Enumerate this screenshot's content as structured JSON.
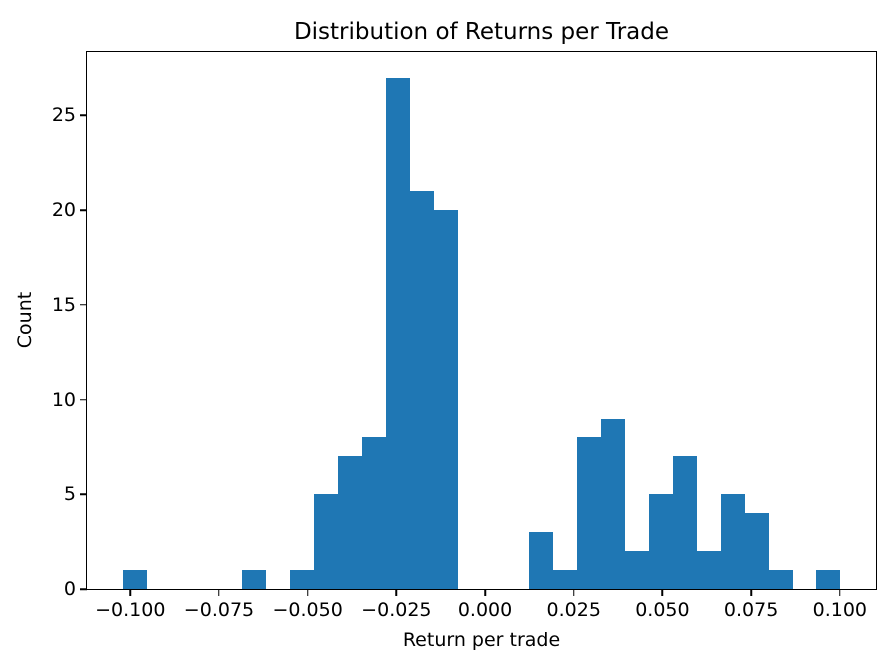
{
  "chart_data": {
    "type": "bar",
    "subtype": "histogram",
    "title": "Distribution of Returns per Trade",
    "xlabel": "Return per trade",
    "ylabel": "Count",
    "bar_color": "#1f77b4",
    "spine_color": "#000000",
    "background_color": "#ffffff",
    "grid": false,
    "xlim": [
      -0.1122,
      0.1102
    ],
    "ylim": [
      0,
      28.35
    ],
    "bins": {
      "start": -0.1021,
      "width": 0.006742,
      "counts": [
        1,
        0,
        0,
        0,
        0,
        1,
        0,
        1,
        5,
        7,
        8,
        27,
        21,
        20,
        0,
        0,
        0,
        3,
        1,
        8,
        9,
        2,
        5,
        7,
        2,
        5,
        4,
        1,
        0,
        1
      ]
    },
    "x_ticks": [
      {
        "value": -0.1,
        "label": "−0.100"
      },
      {
        "value": -0.075,
        "label": "−0.075"
      },
      {
        "value": -0.05,
        "label": "−0.050"
      },
      {
        "value": -0.025,
        "label": "−0.025"
      },
      {
        "value": 0.0,
        "label": "0.000"
      },
      {
        "value": 0.025,
        "label": "0.025"
      },
      {
        "value": 0.05,
        "label": "0.050"
      },
      {
        "value": 0.075,
        "label": "0.075"
      },
      {
        "value": 0.1,
        "label": "0.100"
      }
    ],
    "y_ticks": [
      {
        "value": 0,
        "label": "0"
      },
      {
        "value": 5,
        "label": "5"
      },
      {
        "value": 10,
        "label": "10"
      },
      {
        "value": 15,
        "label": "15"
      },
      {
        "value": 20,
        "label": "20"
      },
      {
        "value": 25,
        "label": "25"
      }
    ]
  }
}
